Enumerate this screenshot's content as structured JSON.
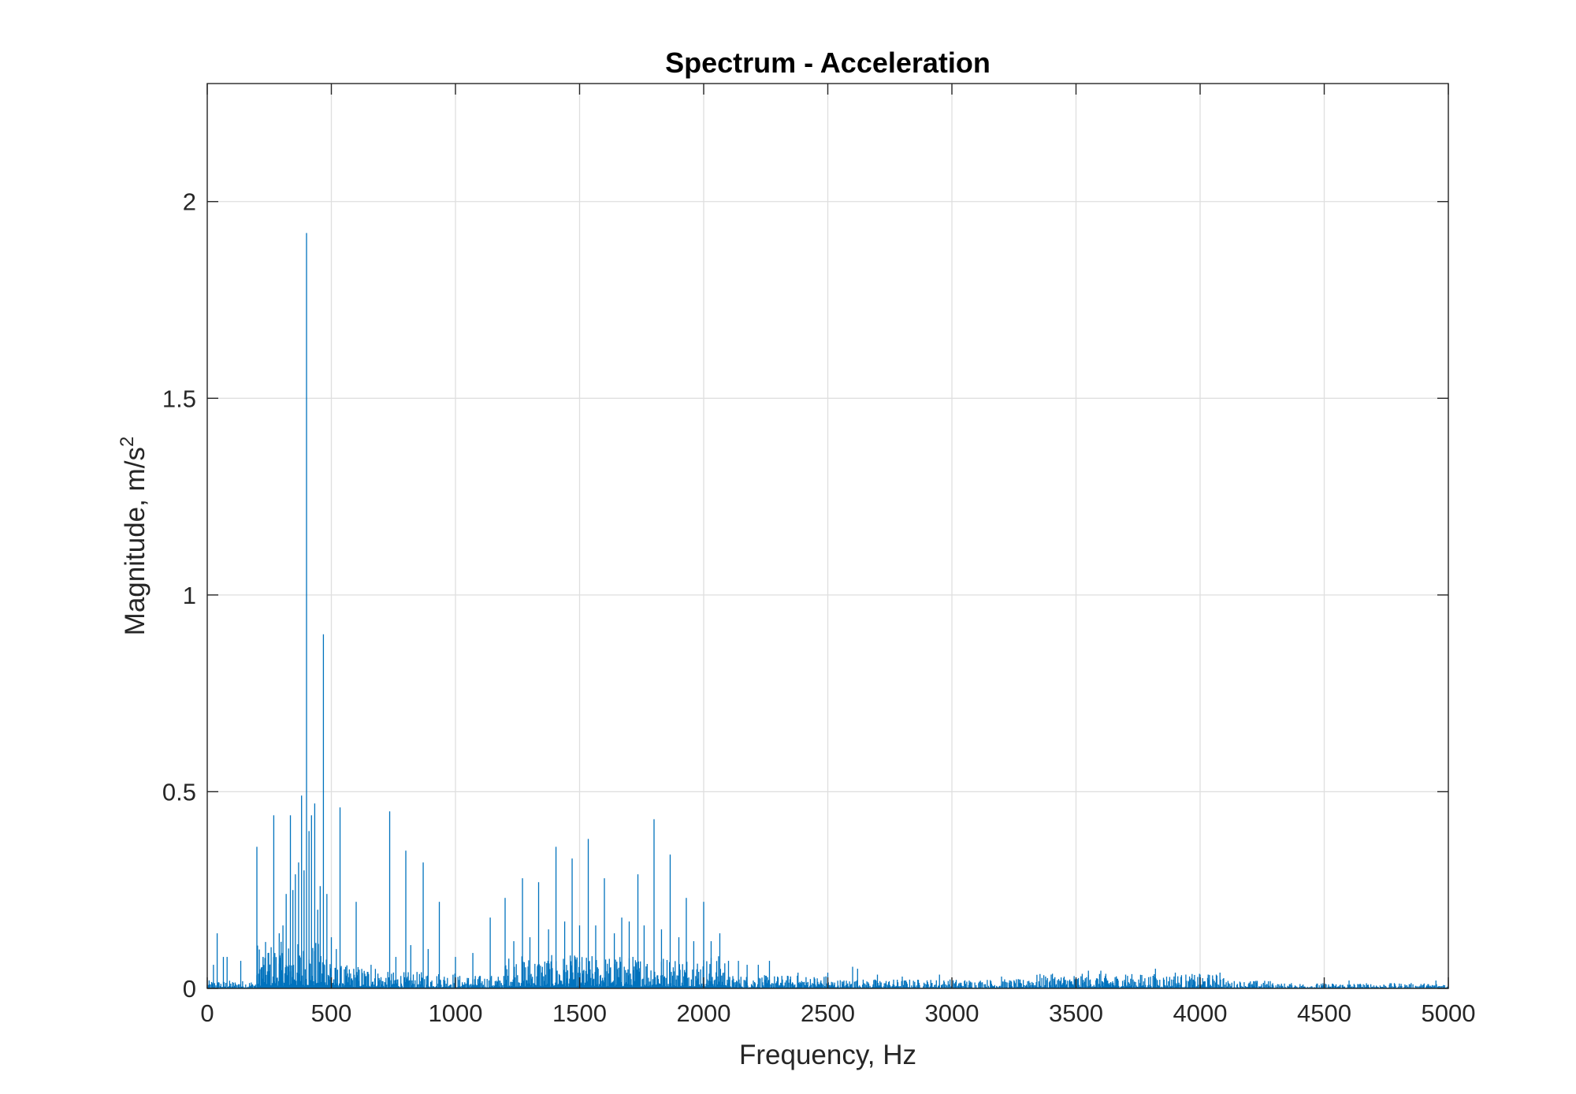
{
  "chart_data": {
    "type": "line",
    "title": "Spectrum - Acceleration",
    "xlabel": "Frequency, Hz",
    "ylabel_main": "Magnitude, m/s",
    "ylabel_sup": "2",
    "xlim": [
      0,
      5000
    ],
    "ylim": [
      0,
      2.3
    ],
    "xticks": [
      0,
      500,
      1000,
      1500,
      2000,
      2500,
      3000,
      3500,
      4000,
      4500,
      5000
    ],
    "xtick_labels": [
      "0",
      "500",
      "1000",
      "1500",
      "2000",
      "2500",
      "3000",
      "3500",
      "4000",
      "4500",
      "5000"
    ],
    "yticks": [
      0,
      0.5,
      1,
      1.5,
      2
    ],
    "ytick_labels": [
      "0",
      "0.5",
      "1",
      "1.5",
      "2"
    ],
    "grid": true,
    "line_color": "#0072BD",
    "series": [
      {
        "peaks": [
          {
            "x": 25,
            "y": 0.06
          },
          {
            "x": 40,
            "y": 0.14
          },
          {
            "x": 65,
            "y": 0.08
          },
          {
            "x": 80,
            "y": 0.08
          },
          {
            "x": 135,
            "y": 0.07
          },
          {
            "x": 200,
            "y": 0.36
          },
          {
            "x": 225,
            "y": 0.08
          },
          {
            "x": 245,
            "y": 0.09
          },
          {
            "x": 268,
            "y": 0.44
          },
          {
            "x": 290,
            "y": 0.14
          },
          {
            "x": 305,
            "y": 0.16
          },
          {
            "x": 318,
            "y": 0.24
          },
          {
            "x": 335,
            "y": 0.44
          },
          {
            "x": 345,
            "y": 0.25
          },
          {
            "x": 355,
            "y": 0.29
          },
          {
            "x": 368,
            "y": 0.32
          },
          {
            "x": 380,
            "y": 0.49
          },
          {
            "x": 390,
            "y": 0.3
          },
          {
            "x": 400,
            "y": 1.92
          },
          {
            "x": 410,
            "y": 0.4
          },
          {
            "x": 420,
            "y": 0.44
          },
          {
            "x": 433,
            "y": 0.47
          },
          {
            "x": 445,
            "y": 0.2
          },
          {
            "x": 455,
            "y": 0.26
          },
          {
            "x": 468,
            "y": 0.9
          },
          {
            "x": 482,
            "y": 0.24
          },
          {
            "x": 500,
            "y": 0.13
          },
          {
            "x": 520,
            "y": 0.1
          },
          {
            "x": 535,
            "y": 0.46
          },
          {
            "x": 600,
            "y": 0.22
          },
          {
            "x": 660,
            "y": 0.06
          },
          {
            "x": 735,
            "y": 0.45
          },
          {
            "x": 760,
            "y": 0.08
          },
          {
            "x": 800,
            "y": 0.35
          },
          {
            "x": 820,
            "y": 0.11
          },
          {
            "x": 870,
            "y": 0.32
          },
          {
            "x": 890,
            "y": 0.1
          },
          {
            "x": 935,
            "y": 0.22
          },
          {
            "x": 1000,
            "y": 0.08
          },
          {
            "x": 1070,
            "y": 0.09
          },
          {
            "x": 1140,
            "y": 0.18
          },
          {
            "x": 1200,
            "y": 0.23
          },
          {
            "x": 1235,
            "y": 0.12
          },
          {
            "x": 1270,
            "y": 0.28
          },
          {
            "x": 1300,
            "y": 0.13
          },
          {
            "x": 1335,
            "y": 0.27
          },
          {
            "x": 1375,
            "y": 0.15
          },
          {
            "x": 1405,
            "y": 0.36
          },
          {
            "x": 1440,
            "y": 0.17
          },
          {
            "x": 1470,
            "y": 0.33
          },
          {
            "x": 1500,
            "y": 0.16
          },
          {
            "x": 1535,
            "y": 0.38
          },
          {
            "x": 1565,
            "y": 0.16
          },
          {
            "x": 1600,
            "y": 0.28
          },
          {
            "x": 1640,
            "y": 0.14
          },
          {
            "x": 1670,
            "y": 0.18
          },
          {
            "x": 1700,
            "y": 0.17
          },
          {
            "x": 1735,
            "y": 0.29
          },
          {
            "x": 1760,
            "y": 0.16
          },
          {
            "x": 1800,
            "y": 0.43
          },
          {
            "x": 1830,
            "y": 0.15
          },
          {
            "x": 1865,
            "y": 0.34
          },
          {
            "x": 1900,
            "y": 0.13
          },
          {
            "x": 1930,
            "y": 0.23
          },
          {
            "x": 1960,
            "y": 0.12
          },
          {
            "x": 2000,
            "y": 0.22
          },
          {
            "x": 2030,
            "y": 0.12
          },
          {
            "x": 2065,
            "y": 0.14
          },
          {
            "x": 2100,
            "y": 0.07
          },
          {
            "x": 2140,
            "y": 0.07
          },
          {
            "x": 2175,
            "y": 0.06
          },
          {
            "x": 2220,
            "y": 0.06
          },
          {
            "x": 2265,
            "y": 0.07
          },
          {
            "x": 2380,
            "y": 0.04
          },
          {
            "x": 2500,
            "y": 0.04
          },
          {
            "x": 2600,
            "y": 0.055
          },
          {
            "x": 2620,
            "y": 0.05
          },
          {
            "x": 2700,
            "y": 0.035
          },
          {
            "x": 2800,
            "y": 0.03
          },
          {
            "x": 2950,
            "y": 0.035
          },
          {
            "x": 3200,
            "y": 0.03
          },
          {
            "x": 3400,
            "y": 0.035
          },
          {
            "x": 3550,
            "y": 0.045
          },
          {
            "x": 3600,
            "y": 0.045
          },
          {
            "x": 3700,
            "y": 0.035
          },
          {
            "x": 3820,
            "y": 0.05
          },
          {
            "x": 3900,
            "y": 0.04
          },
          {
            "x": 4000,
            "y": 0.035
          },
          {
            "x": 4080,
            "y": 0.04
          },
          {
            "x": 4600,
            "y": 0.02
          },
          {
            "x": 4950,
            "y": 0.02
          }
        ]
      }
    ]
  }
}
